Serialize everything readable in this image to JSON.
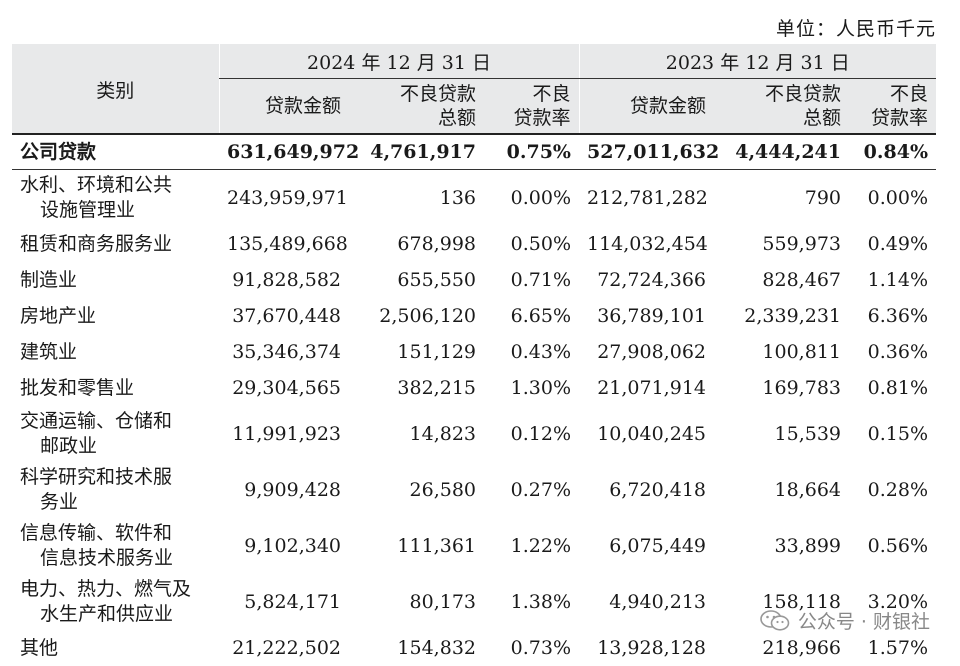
{
  "unit_label": "单位：人民币千元",
  "headers": {
    "category": "类别",
    "period_2024": "2024 年 12 月 31 日",
    "period_2023": "2023 年 12 月 31 日",
    "loan_amount": "贷款金额",
    "npl_total_line1": "不良贷款",
    "npl_total_line2": "总额",
    "npl_ratio_line1": "不良",
    "npl_ratio_line2": "贷款率"
  },
  "total": {
    "name": "公司贷款",
    "loan_2024": "631,649,972",
    "npl_2024": "4,761,917",
    "ratio_2024": "0.75%",
    "loan_2023": "527,011,632",
    "npl_2023": "4,444,241",
    "ratio_2023": "0.84%"
  },
  "rows": [
    {
      "name_line1": "水利、环境和公共",
      "name_line2": "设施管理业",
      "loan_2024": "243,959,971",
      "npl_2024": "136",
      "ratio_2024": "0.00%",
      "loan_2023": "212,781,282",
      "npl_2023": "790",
      "ratio_2023": "0.00%"
    },
    {
      "name_line1": "租赁和商务服务业",
      "name_line2": "",
      "loan_2024": "135,489,668",
      "npl_2024": "678,998",
      "ratio_2024": "0.50%",
      "loan_2023": "114,032,454",
      "npl_2023": "559,973",
      "ratio_2023": "0.49%"
    },
    {
      "name_line1": "制造业",
      "name_line2": "",
      "loan_2024": "91,828,582",
      "npl_2024": "655,550",
      "ratio_2024": "0.71%",
      "loan_2023": "72,724,366",
      "npl_2023": "828,467",
      "ratio_2023": "1.14%"
    },
    {
      "name_line1": "房地产业",
      "name_line2": "",
      "loan_2024": "37,670,448",
      "npl_2024": "2,506,120",
      "ratio_2024": "6.65%",
      "loan_2023": "36,789,101",
      "npl_2023": "2,339,231",
      "ratio_2023": "6.36%"
    },
    {
      "name_line1": "建筑业",
      "name_line2": "",
      "loan_2024": "35,346,374",
      "npl_2024": "151,129",
      "ratio_2024": "0.43%",
      "loan_2023": "27,908,062",
      "npl_2023": "100,811",
      "ratio_2023": "0.36%"
    },
    {
      "name_line1": "批发和零售业",
      "name_line2": "",
      "loan_2024": "29,304,565",
      "npl_2024": "382,215",
      "ratio_2024": "1.30%",
      "loan_2023": "21,071,914",
      "npl_2023": "169,783",
      "ratio_2023": "0.81%"
    },
    {
      "name_line1": "交通运输、仓储和",
      "name_line2": "邮政业",
      "loan_2024": "11,991,923",
      "npl_2024": "14,823",
      "ratio_2024": "0.12%",
      "loan_2023": "10,040,245",
      "npl_2023": "15,539",
      "ratio_2023": "0.15%"
    },
    {
      "name_line1": "科学研究和技术服",
      "name_line2": "务业",
      "loan_2024": "9,909,428",
      "npl_2024": "26,580",
      "ratio_2024": "0.27%",
      "loan_2023": "6,720,418",
      "npl_2023": "18,664",
      "ratio_2023": "0.28%"
    },
    {
      "name_line1": "信息传输、软件和",
      "name_line2": "信息技术服务业",
      "loan_2024": "9,102,340",
      "npl_2024": "111,361",
      "ratio_2024": "1.22%",
      "loan_2023": "6,075,449",
      "npl_2023": "33,899",
      "ratio_2023": "0.56%"
    },
    {
      "name_line1": "电力、热力、燃气及",
      "name_line2": "水生产和供应业",
      "loan_2024": "5,824,171",
      "npl_2024": "80,173",
      "ratio_2024": "1.38%",
      "loan_2023": "4,940,213",
      "npl_2023": "158,118",
      "ratio_2023": "3.20%"
    },
    {
      "name_line1": "其他",
      "name_line2": "",
      "loan_2024": "21,222,502",
      "npl_2024": "154,832",
      "ratio_2024": "0.73%",
      "loan_2023": "13,928,128",
      "npl_2023": "218,966",
      "ratio_2023": "1.57%"
    }
  ],
  "watermark": {
    "text": "公众号 · 财银社",
    "icon": "wechat-icon"
  }
}
